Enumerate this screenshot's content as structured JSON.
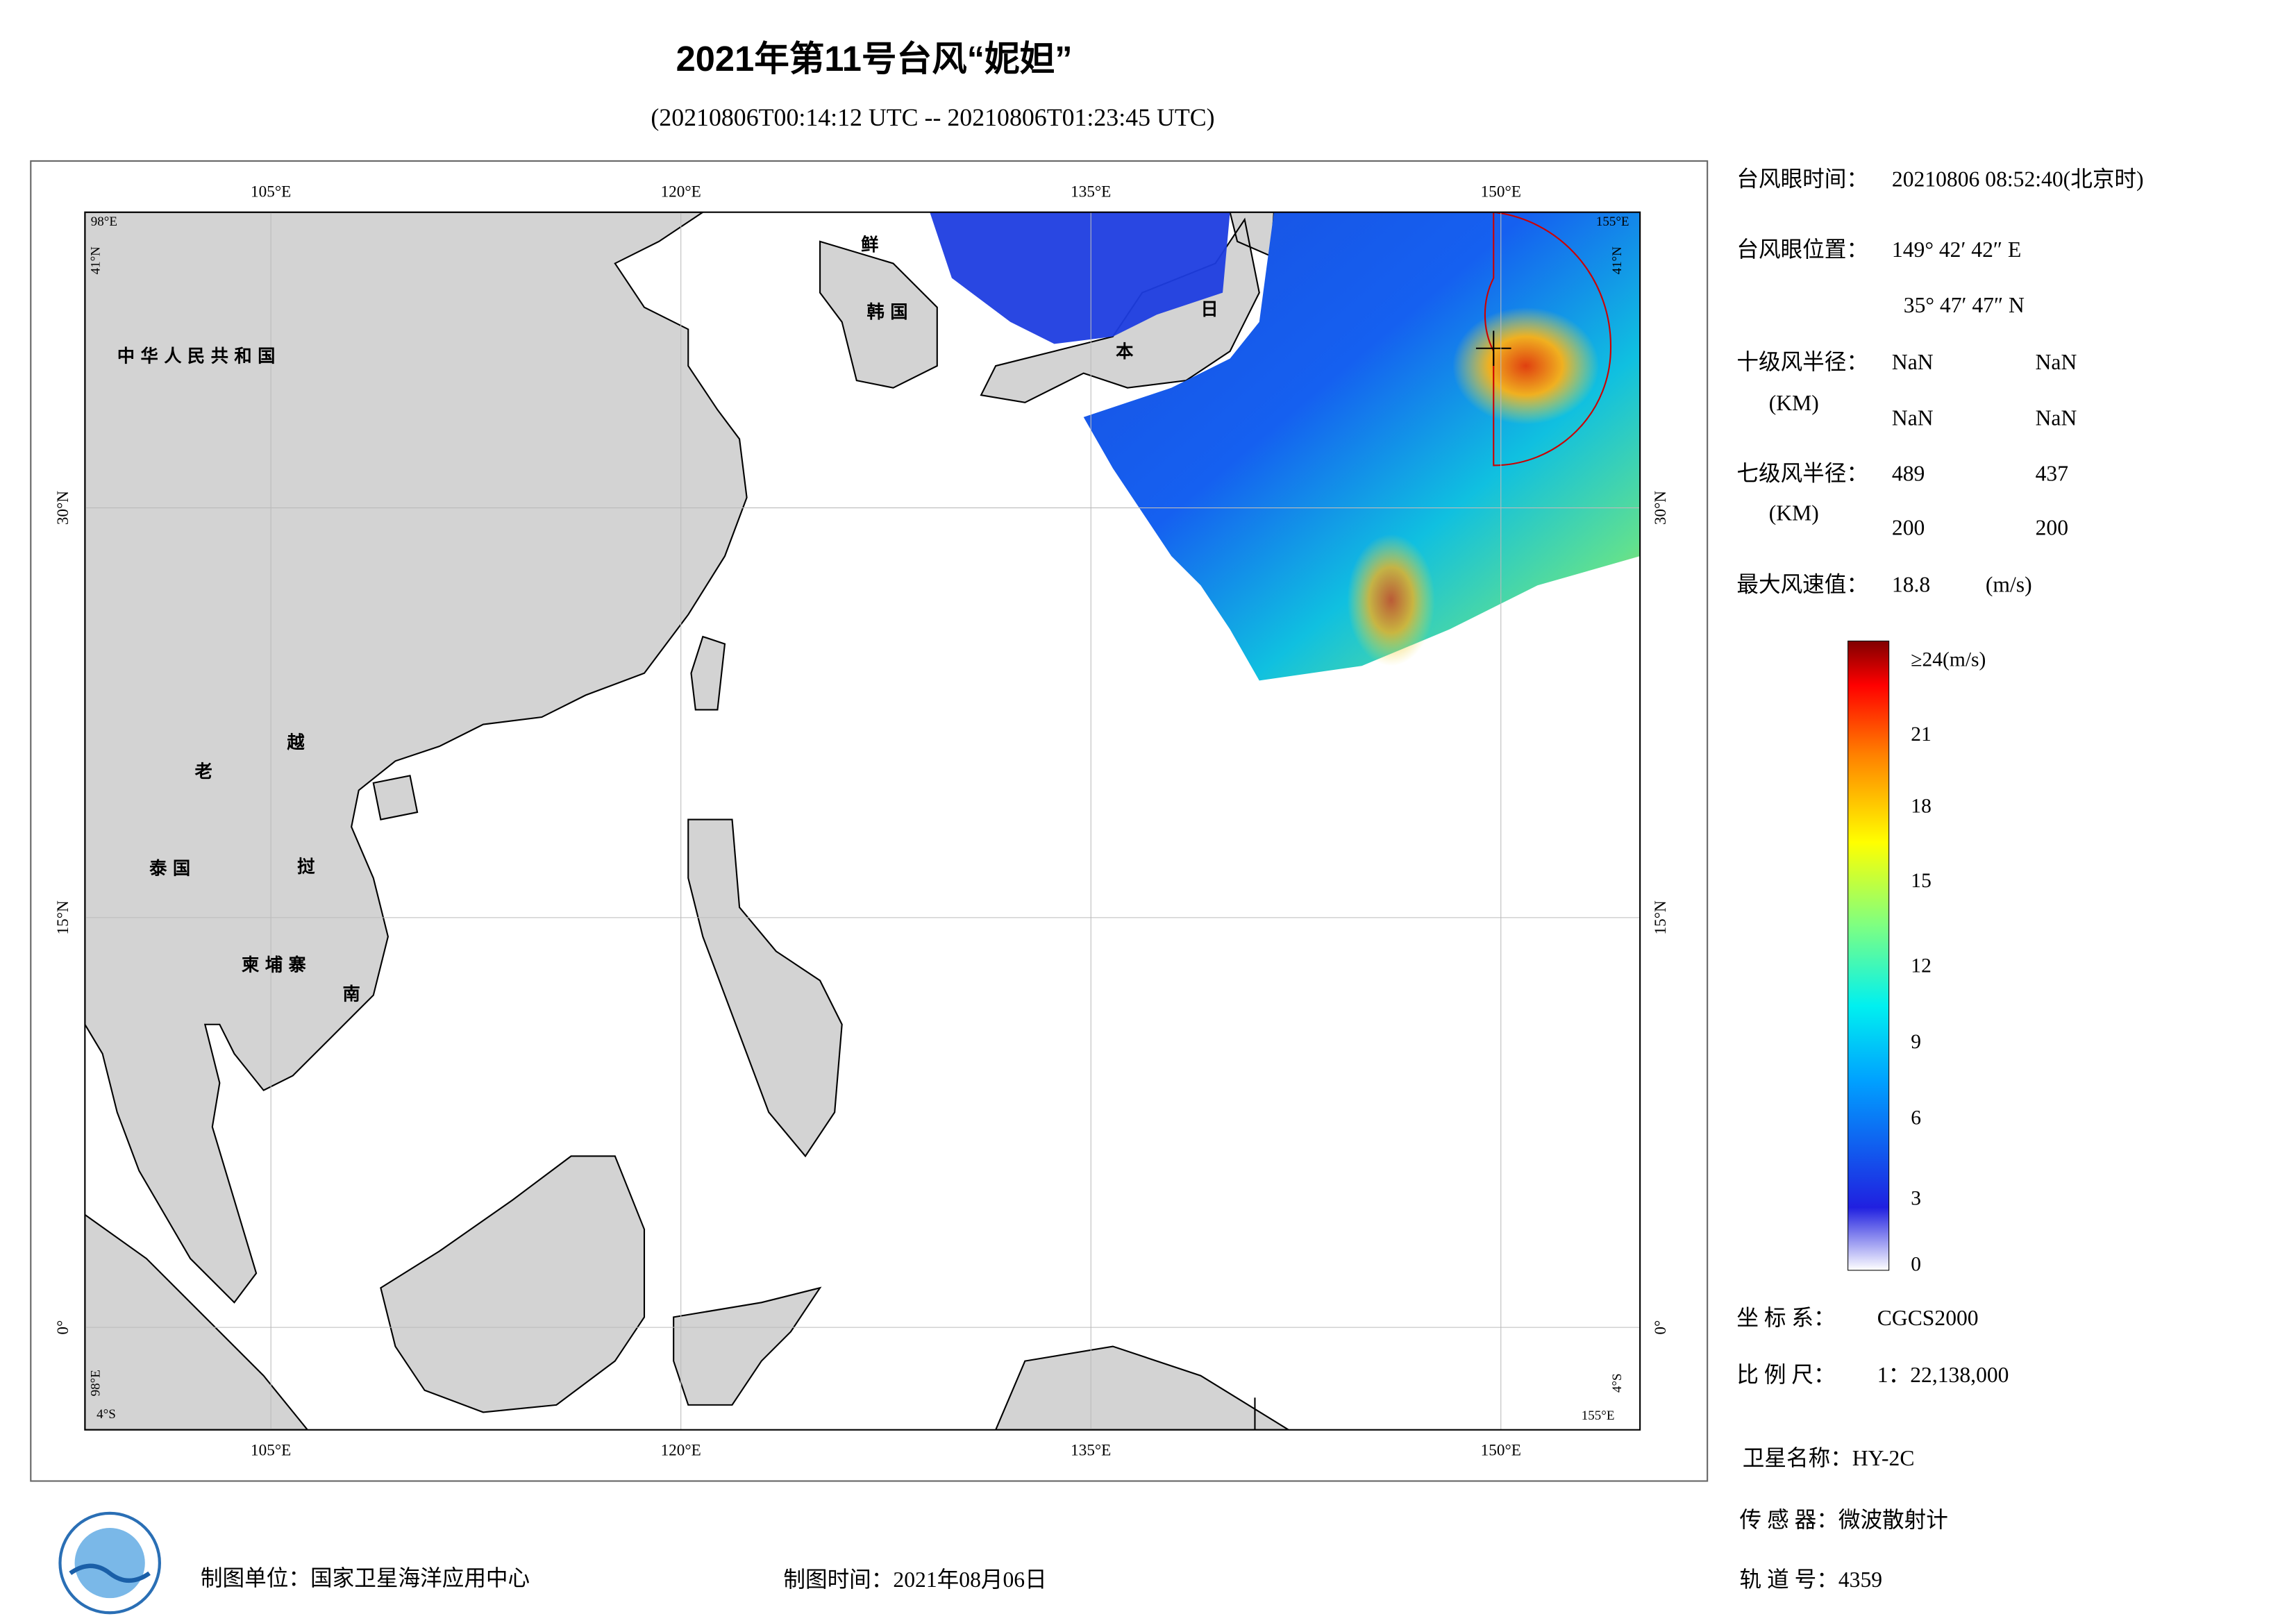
{
  "header": {
    "title": "2021年第11号台风“妮妲”",
    "subtitle": "(20210806T00:14:12 UTC -- 20210806T01:23:45 UTC)"
  },
  "map": {
    "top_labels": [
      "105°E",
      "120°E",
      "135°E",
      "150°E"
    ],
    "bottom_labels": [
      "105°E",
      "120°E",
      "135°E",
      "150°E"
    ],
    "left_labels": [
      "30°N",
      "15°N",
      "0°"
    ],
    "right_labels": [
      "30°N",
      "15°N",
      "0°"
    ],
    "corners": [
      "98°E",
      "41°N",
      "155°E",
      "41°N",
      "4°S",
      "98°E",
      "4°S",
      "155°E"
    ],
    "places": [
      "中华人民共和国",
      "鲜",
      "韩国",
      "日",
      "本",
      "老",
      "越",
      "泰国",
      "挝",
      "柬埔寨",
      "南"
    ]
  },
  "info": {
    "eye_time": [
      "台风眼时间：",
      "20210806 08:52:40(北京时)"
    ],
    "eye_position": [
      "台风眼位置：",
      "149° 42′ 42″ E",
      "35° 47′ 47″ N"
    ],
    "r10": [
      "十级风半径：",
      "NaN",
      "NaN",
      "(KM)",
      "NaN",
      "NaN"
    ],
    "r7": [
      "七级风半径：",
      "489",
      "437",
      "(KM)",
      "200",
      "200"
    ],
    "max_wind": [
      "最大风速值：",
      "18.8",
      "(m/s)"
    ],
    "colorbar": [
      "≥24(m/s)",
      "21",
      "18",
      "15",
      "12",
      "9",
      "6",
      "3",
      "0"
    ],
    "crs": [
      "坐 标 系：",
      "CGCS2000"
    ],
    "scale": [
      "比 例 尺：",
      "1：22,138,000"
    ],
    "satellite": "卫星名称：HY-2C",
    "sensor": "传 感 器：微波散射计",
    "orbit": "轨 道 号：4359"
  },
  "footer": {
    "maker": "制图单位：国家卫星海洋应用中心",
    "date": "制图时间：2021年08月06日"
  }
}
